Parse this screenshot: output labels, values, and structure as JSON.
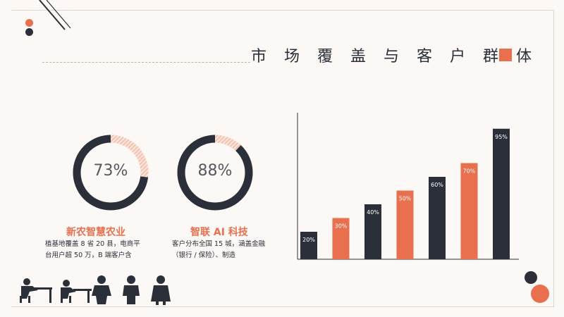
{
  "slide": {
    "title": "市 场 覆 盖 与 客 户 群 体",
    "colors": {
      "accent": "#e9704f",
      "dark": "#2a2f3a",
      "hatch": "#f3b9a5"
    }
  },
  "donuts": [
    {
      "percent": "73%",
      "value": 0.73,
      "company": "新农智慧农业",
      "desc_line1": "植基地覆盖 8 省 20 县，电商平",
      "desc_line2": "台用户超 50 万，B 端客户含"
    },
    {
      "percent": "88%",
      "value": 0.88,
      "company": "智联 AI 科技",
      "desc_line1": "客户分布全国 15 城，涵盖金融",
      "desc_line2": "（银行 / 保险）、制造"
    }
  ],
  "chart_data": {
    "type": "bar",
    "categories": [
      "",
      "",
      "",
      "",
      "",
      "",
      ""
    ],
    "values": [
      20,
      30,
      40,
      50,
      60,
      70,
      95
    ],
    "labels": [
      "20%",
      "30%",
      "40%",
      "50%",
      "60%",
      "70%",
      "95%"
    ],
    "colors": [
      "#2a2f3a",
      "#e9704f",
      "#2a2f3a",
      "#e9704f",
      "#2a2f3a",
      "#e9704f",
      "#2a2f3a"
    ],
    "ylim": [
      0,
      100
    ],
    "grid": false,
    "title": "",
    "xlabel": "",
    "ylabel": ""
  },
  "decor": {
    "people_icon": "office-people-icon",
    "corner_icon": "diagonal-lines-icon"
  }
}
